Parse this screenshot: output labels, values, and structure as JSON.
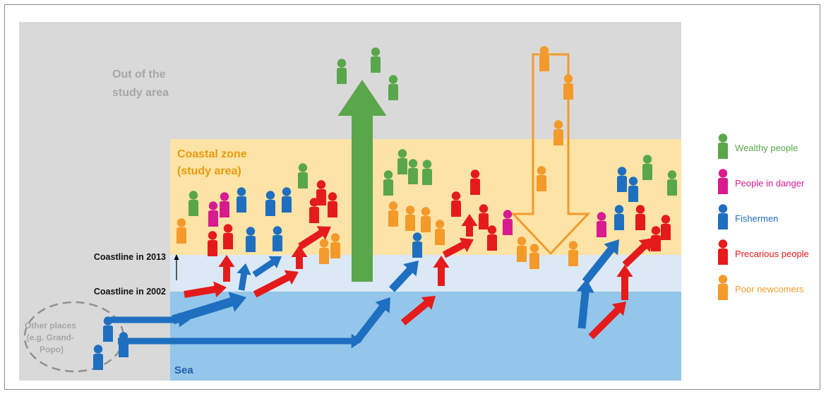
{
  "zones": {
    "outside": "Out of the study area",
    "outside_line1": "Out of the",
    "outside_line2": "study area",
    "coastal": "Coastal zone (study area)",
    "coastal_line1": "Coastal zone",
    "coastal_line2": "(study area)",
    "sea": "Sea"
  },
  "coastlines": {
    "y2013": "Coastline in 2013",
    "y2002": "Coastline in 2002"
  },
  "other_places": {
    "line1": "Other places",
    "line2": "(e.g. Grand-",
    "line3": "Popo)"
  },
  "legend": [
    {
      "label": "Wealthy people",
      "color": "#5aa64b"
    },
    {
      "label": "People in danger",
      "color": "#d81b8f"
    },
    {
      "label": "Fishermen",
      "color": "#1f6fc0"
    },
    {
      "label": "Precarious people",
      "color": "#e51b1b"
    },
    {
      "label": "Poor newcomers",
      "color": "#f39a2b"
    }
  ],
  "colors": {
    "outside": "#d9d9d9",
    "coastal": "#fde3a6",
    "coast_band": "#dbe8f5",
    "sea": "#93c6ea",
    "outside_text": "#a6a6a6",
    "coastal_text": "#e89b0c",
    "sea_text": "#1f5fa8"
  }
}
